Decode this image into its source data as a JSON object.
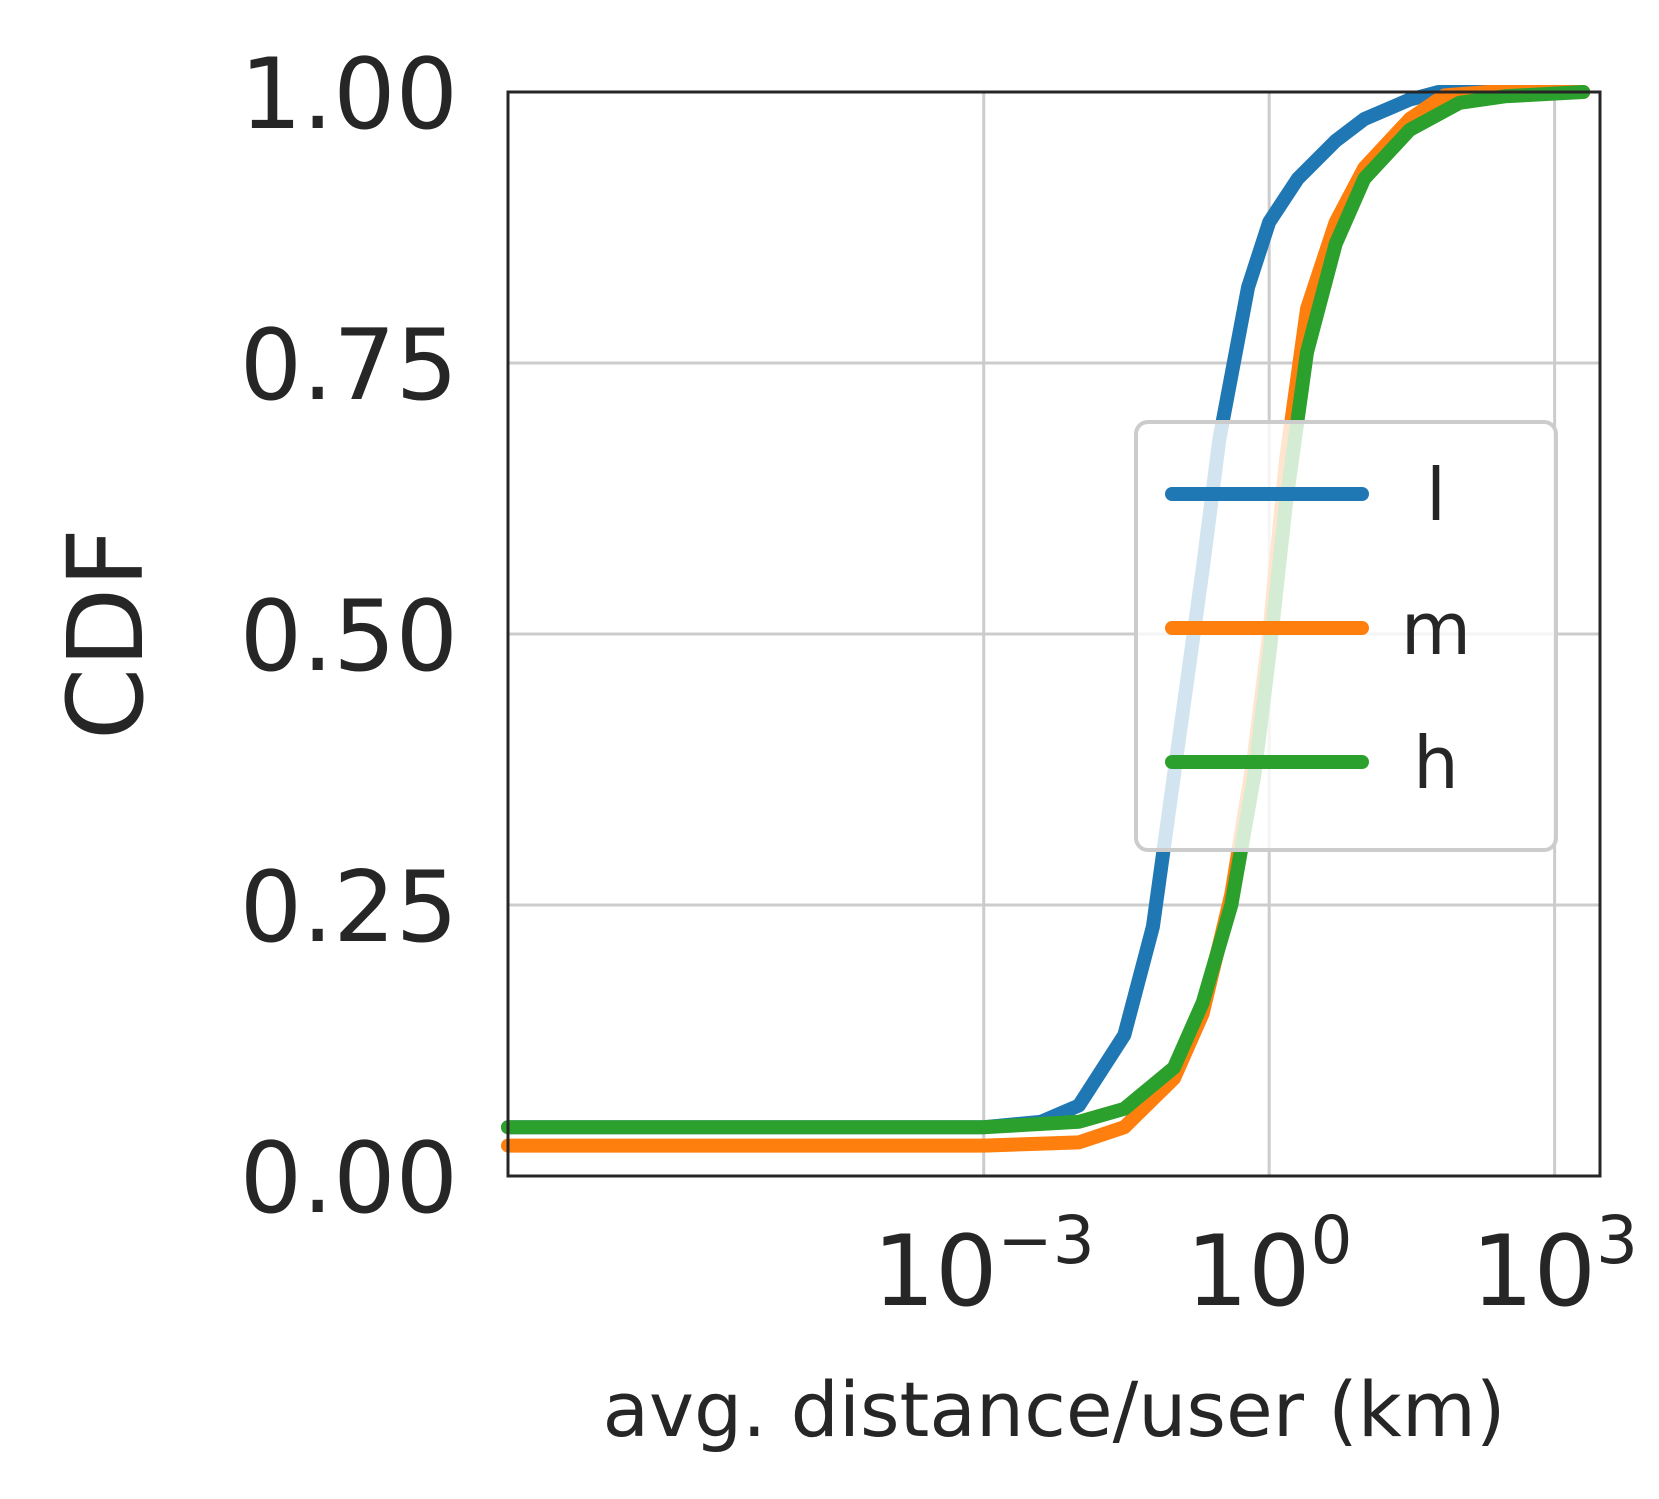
{
  "chart_data": {
    "type": "line",
    "xlabel": "avg. distance/user (km)",
    "ylabel": "CDF",
    "x_scale": "log",
    "xlim": [
      1e-08,
      3000
    ],
    "ylim": [
      0,
      1
    ],
    "grid": true,
    "legend_position": "center-right",
    "x_ticks": [
      {
        "value": 0.001,
        "base": "10",
        "exp": "−3"
      },
      {
        "value": 1,
        "base": "10",
        "exp": "0"
      },
      {
        "value": 1000,
        "base": "10",
        "exp": "3"
      }
    ],
    "y_ticks": [
      {
        "value": 0,
        "label": "0.00"
      },
      {
        "value": 0.25,
        "label": "0.25"
      },
      {
        "value": 0.5,
        "label": "0.50"
      },
      {
        "value": 0.75,
        "label": "0.75"
      },
      {
        "value": 1,
        "label": "1.00"
      }
    ],
    "series": [
      {
        "name": "l",
        "color": "#1f77b4",
        "points": [
          [
            1e-08,
            0.045
          ],
          [
            0.001,
            0.045
          ],
          [
            0.004,
            0.05
          ],
          [
            0.01,
            0.065
          ],
          [
            0.03,
            0.13
          ],
          [
            0.06,
            0.23
          ],
          [
            0.1,
            0.37
          ],
          [
            0.2,
            0.56
          ],
          [
            0.3,
            0.68
          ],
          [
            0.6,
            0.82
          ],
          [
            1,
            0.88
          ],
          [
            2,
            0.92
          ],
          [
            5,
            0.955
          ],
          [
            10,
            0.975
          ],
          [
            30,
            0.993
          ],
          [
            60,
            1.0
          ],
          [
            2000,
            1.0
          ]
        ]
      },
      {
        "name": "m",
        "color": "#ff7f0e",
        "points": [
          [
            1e-08,
            0.028
          ],
          [
            0.001,
            0.028
          ],
          [
            0.01,
            0.031
          ],
          [
            0.03,
            0.045
          ],
          [
            0.1,
            0.09
          ],
          [
            0.2,
            0.15
          ],
          [
            0.4,
            0.26
          ],
          [
            0.7,
            0.39
          ],
          [
            1,
            0.5
          ],
          [
            1.5,
            0.66
          ],
          [
            2.5,
            0.8
          ],
          [
            5,
            0.88
          ],
          [
            10,
            0.93
          ],
          [
            30,
            0.975
          ],
          [
            70,
            0.997
          ],
          [
            200,
            1.0
          ],
          [
            2000,
            1.0
          ]
        ]
      },
      {
        "name": "h",
        "color": "#2ca02c",
        "points": [
          [
            1e-08,
            0.045
          ],
          [
            0.001,
            0.045
          ],
          [
            0.01,
            0.05
          ],
          [
            0.03,
            0.062
          ],
          [
            0.1,
            0.1
          ],
          [
            0.2,
            0.16
          ],
          [
            0.4,
            0.25
          ],
          [
            0.7,
            0.37
          ],
          [
            1,
            0.48
          ],
          [
            1.5,
            0.62
          ],
          [
            2.5,
            0.76
          ],
          [
            5,
            0.86
          ],
          [
            10,
            0.92
          ],
          [
            30,
            0.965
          ],
          [
            100,
            0.99
          ],
          [
            300,
            0.996
          ],
          [
            2000,
            1.0
          ]
        ]
      }
    ]
  }
}
